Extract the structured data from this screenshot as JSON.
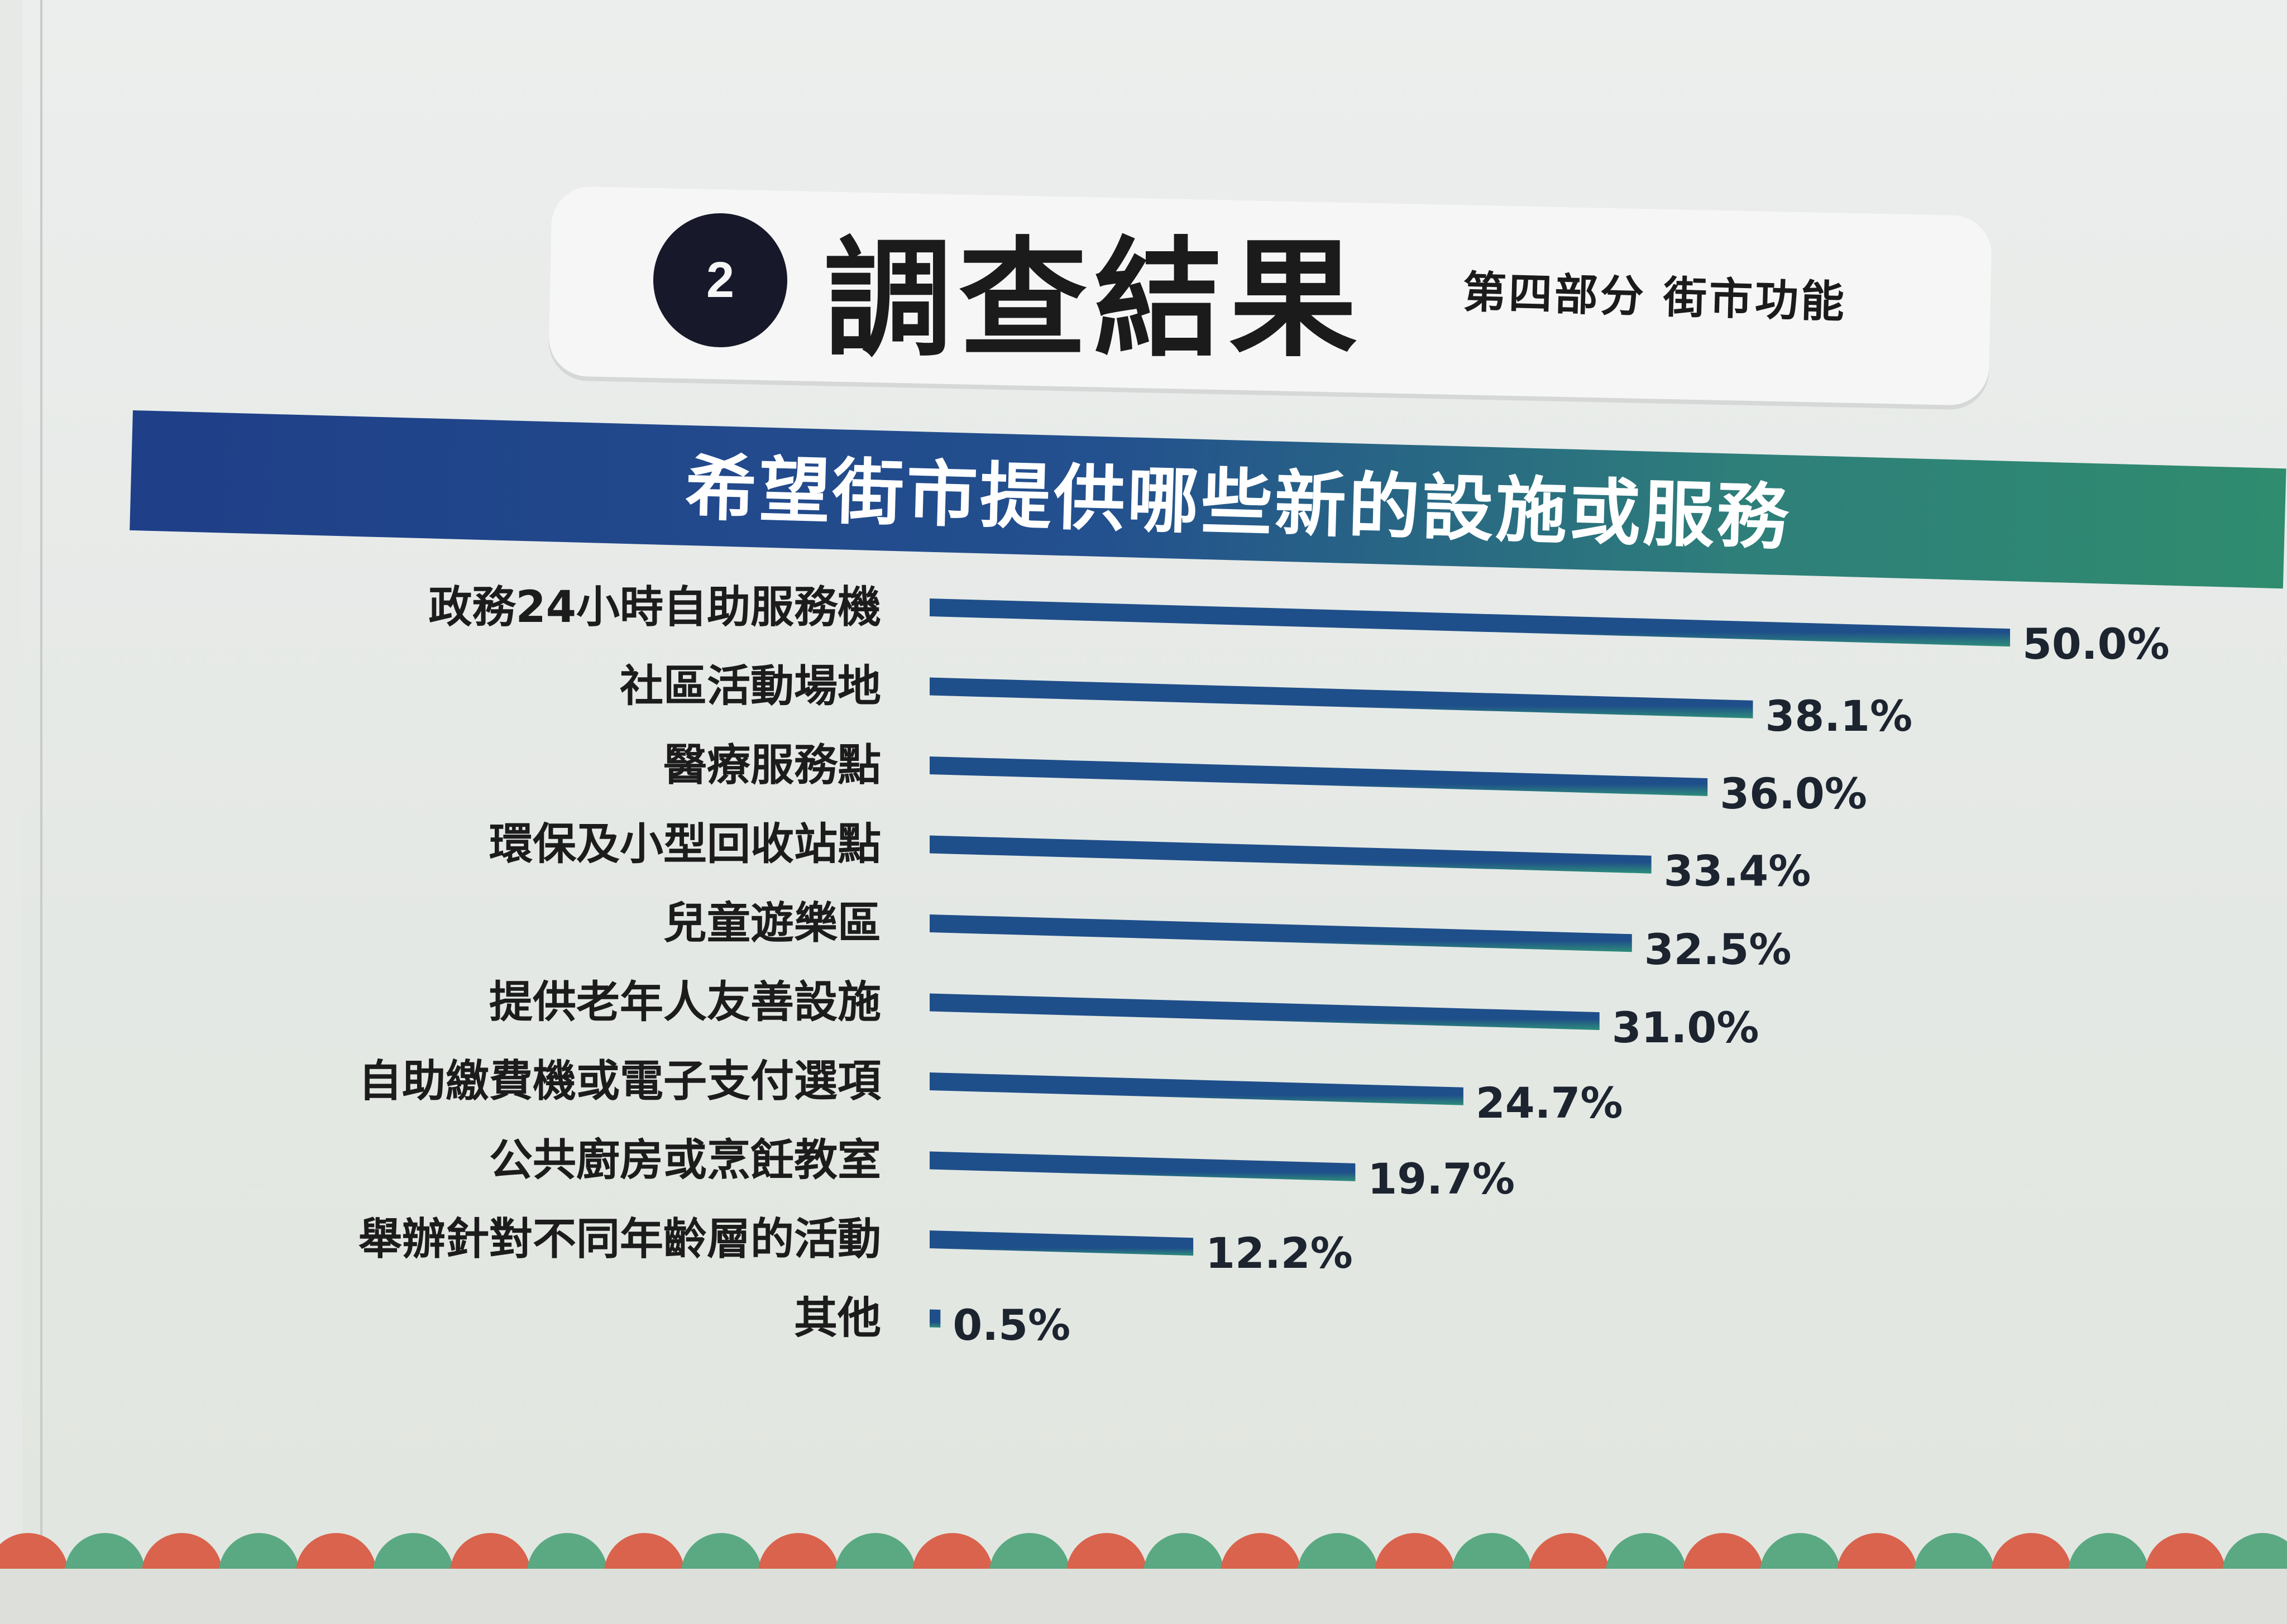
{
  "header": {
    "section_number": "2",
    "title": "調查結果",
    "subtitle": "第四部分 街市功能"
  },
  "banner": {
    "title": "希望街市提供哪些新的設施或服務"
  },
  "colors": {
    "banner_left": "#1f3f88",
    "banner_right": "#2f8c6e",
    "bar_main": "#1f4f8a",
    "bar_accent": "#2e8e7a",
    "decor_red": "#d9634d",
    "decor_green": "#5aa982"
  },
  "chart_data": {
    "type": "bar",
    "orientation": "horizontal",
    "title": "希望街市提供哪些新的設施或服務",
    "categories": [
      "政務24小時自助服務機",
      "社區活動場地",
      "醫療服務點",
      "環保及小型回收站點",
      "兒童遊樂區",
      "提供老年人友善設施",
      "自助繳費機或電子支付選項",
      "公共廚房或烹飪教室",
      "舉辦針對不同年齡層的活動",
      "其他"
    ],
    "values": [
      50.0,
      38.1,
      36.0,
      33.4,
      32.5,
      31.0,
      24.7,
      19.7,
      12.2,
      0.5
    ],
    "value_labels": [
      "50.0%",
      "38.1%",
      "36.0%",
      "33.4%",
      "32.5%",
      "31.0%",
      "24.7%",
      "19.7%",
      "12.2%",
      "0.5%"
    ],
    "xlim": [
      0,
      50
    ],
    "unit": "%",
    "grid": false,
    "legend": "none"
  }
}
